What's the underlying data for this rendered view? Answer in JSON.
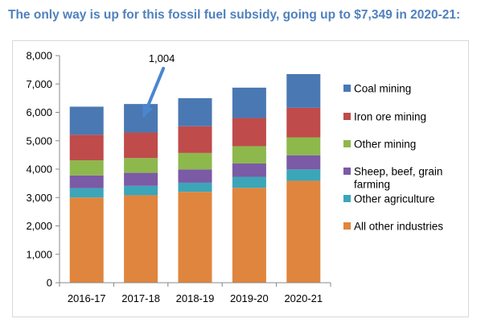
{
  "title": "The only way is up for this fossil fuel subsidy, going up to $7,349 in 2020-21:",
  "chart_data": {
    "type": "bar",
    "stacked": true,
    "categories": [
      "2016-17",
      "2017-18",
      "2018-19",
      "2019-20",
      "2020-21"
    ],
    "ylim": [
      0,
      8000
    ],
    "yticks": [
      0,
      1000,
      2000,
      3000,
      4000,
      5000,
      6000,
      7000,
      8000
    ],
    "ytick_labels": [
      "0",
      "1,000",
      "2,000",
      "3,000",
      "4,000",
      "5,000",
      "6,000",
      "7,000",
      "8,000"
    ],
    "grid": false,
    "legend_position": "right",
    "series": [
      {
        "name": "All other industries",
        "color": "#E0853D",
        "values": [
          3000,
          3080,
          3200,
          3340,
          3590
        ]
      },
      {
        "name": "Other agriculture",
        "color": "#3CA6B8",
        "values": [
          330,
          330,
          320,
          390,
          400
        ]
      },
      {
        "name": "Sheep, beef, grain farming",
        "color": "#7B5AA6",
        "values": [
          450,
          460,
          470,
          470,
          500
        ]
      },
      {
        "name": "Other mining",
        "color": "#8DB84C",
        "values": [
          530,
          520,
          580,
          610,
          630
        ]
      },
      {
        "name": "Iron ore mining",
        "color": "#BF4B4B",
        "values": [
          900,
          900,
          940,
          990,
          1040
        ]
      },
      {
        "name": "Coal mining",
        "color": "#4A78B3",
        "values": [
          990,
          1004,
          990,
          1070,
          1189
        ]
      }
    ],
    "annotations": [
      {
        "text": "1,004",
        "category": "2017-18",
        "arrow": true,
        "color": "#4A86D0"
      }
    ]
  }
}
